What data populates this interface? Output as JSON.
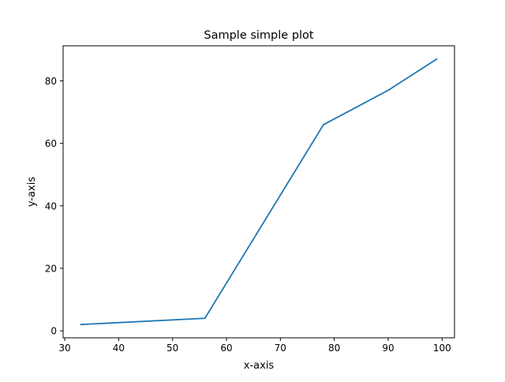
{
  "chart_data": {
    "type": "line",
    "title": "Sample simple plot",
    "xlabel": "x-axis",
    "ylabel": "y-axis",
    "xlim": [
      29.7,
      102.3
    ],
    "ylim": [
      -2.25,
      91.25
    ],
    "xticks": [
      30,
      40,
      50,
      60,
      70,
      80,
      90,
      100
    ],
    "yticks": [
      0,
      20,
      40,
      60,
      80
    ],
    "grid": false,
    "series": [
      {
        "x": [
          33,
          56,
          78,
          90,
          99
        ],
        "y": [
          2,
          4,
          66,
          77,
          87
        ],
        "color": "#1f77b4"
      }
    ]
  }
}
